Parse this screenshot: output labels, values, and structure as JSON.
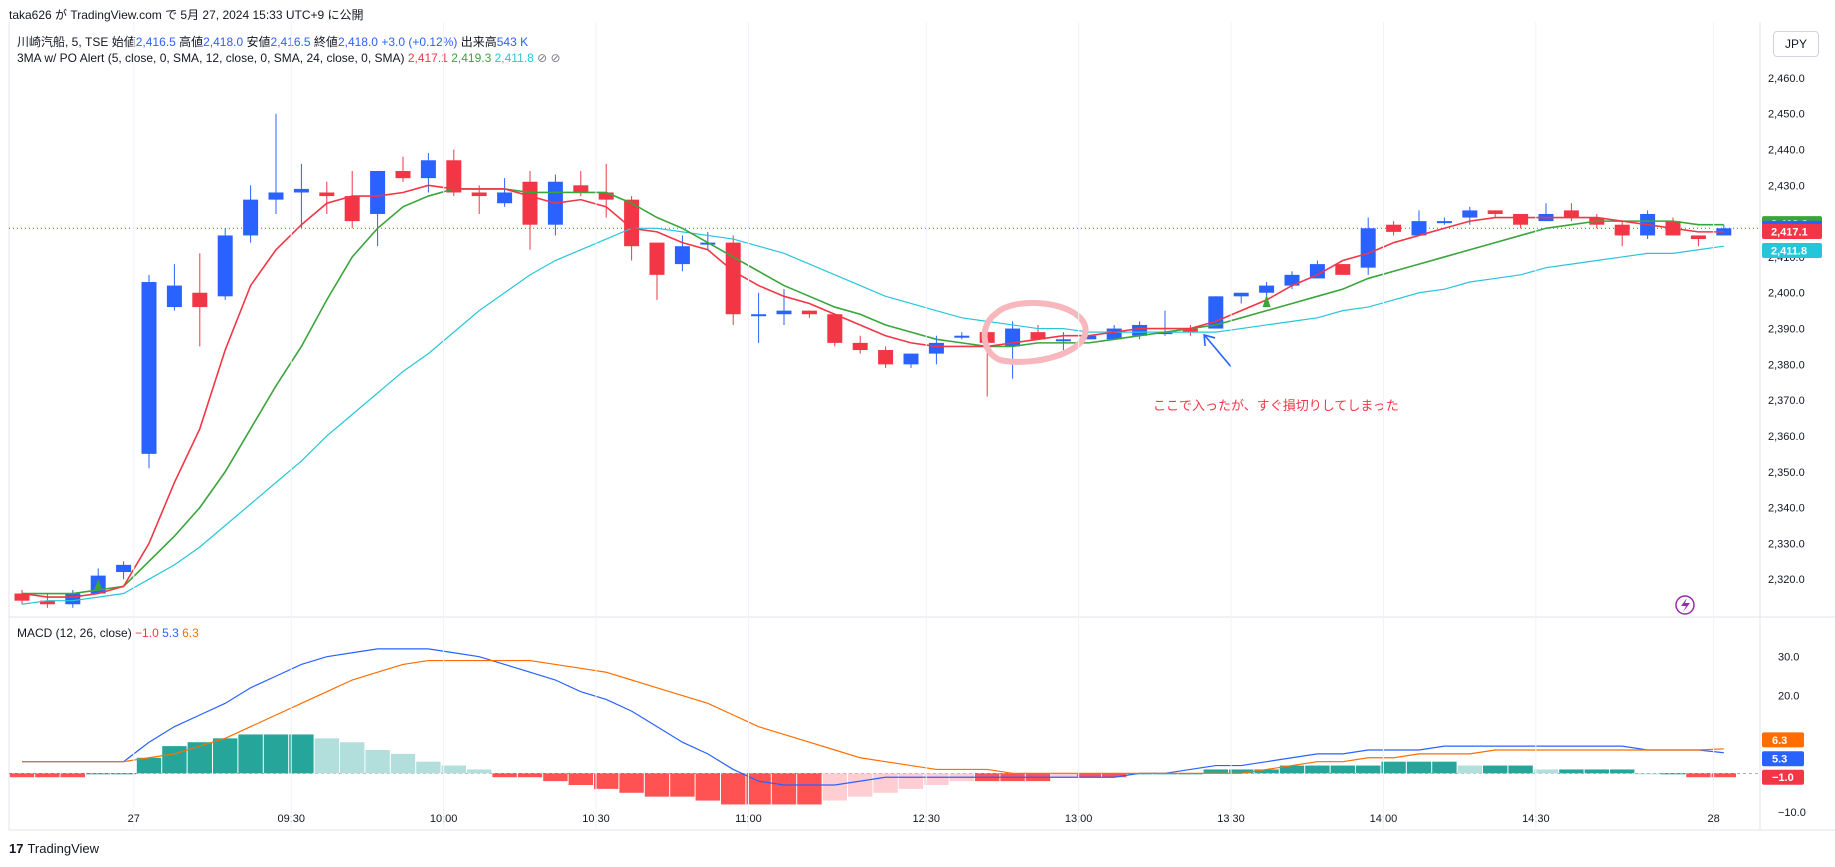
{
  "caption": "taka626 が TradingView.com で 5月 27, 2024 15:33 UTC+9 に公開",
  "symbol_legend": {
    "name": "川崎汽船, 5, TSE",
    "open_label": "始値",
    "open": "2,416.5",
    "high_label": "高値",
    "high": "2,418.0",
    "low_label": "安値",
    "low": "2,416.5",
    "close_label": "終値",
    "close": "2,418.0",
    "change": "+3.0 (+0.12%)",
    "volume_label": "出来高",
    "volume": "543 K"
  },
  "ma_legend": {
    "name": "3MA w/ PO Alert (5, close, 0, SMA, 12, close, 0, SMA, 24, close, 0, SMA)",
    "v1": "2,417.1",
    "v2": "2,419.3",
    "v3": "2,411.8"
  },
  "macd_legend": {
    "name": "MACD (12, 26, close)",
    "v1": "−1.0",
    "v2": "5.3",
    "v3": "6.3"
  },
  "currency_button": "JPY",
  "footer": "TradingView",
  "annotation": "ここで入ったが、すぐ損切りしてしまった",
  "colors": {
    "up": "#2962ff",
    "down": "#f23645",
    "ma5": "#f23645",
    "ma12": "#3ba53b",
    "ma24": "#26c6da",
    "macd": "#2962ff",
    "signal": "#ff6d00",
    "hist_up_strong": "#26a69a",
    "hist_up_weak": "#b2dfdb",
    "hist_down_strong": "#ff5252",
    "hist_down_weak": "#ffcdd2"
  },
  "chart_data": [
    {
      "type": "candlestick",
      "ylim": [
        2310,
        2465
      ],
      "y_ticks": [
        2320,
        2330,
        2340,
        2350,
        2360,
        2370,
        2380,
        2390,
        2400,
        2410,
        2420,
        2430,
        2440,
        2450,
        2460
      ],
      "y_tick_labels": [
        "2,320.0",
        "2,330.0",
        "2,340.0",
        "2,350.0",
        "2,360.0",
        "2,370.0",
        "2,380.0",
        "2,390.0",
        "2,400.0",
        "2,410.0",
        "2,420.0",
        "2,430.0",
        "2,440.0",
        "2,450.0",
        "2,460.0"
      ],
      "x_labels": [
        {
          "i": 4.4,
          "text": "27"
        },
        {
          "i": 10.6,
          "text": "09:30"
        },
        {
          "i": 16.6,
          "text": "10:00"
        },
        {
          "i": 22.6,
          "text": "10:30"
        },
        {
          "i": 28.6,
          "text": "11:00"
        },
        {
          "i": 35.6,
          "text": "12:30"
        },
        {
          "i": 41.6,
          "text": "13:00"
        },
        {
          "i": 47.6,
          "text": "13:30"
        },
        {
          "i": 53.6,
          "text": "14:00"
        },
        {
          "i": 59.6,
          "text": "14:30"
        },
        {
          "i": 66.6,
          "text": "28"
        }
      ],
      "candles": [
        [
          2316,
          2317,
          2313,
          2314
        ],
        [
          2314,
          2316,
          2312,
          2313
        ],
        [
          2313,
          2317,
          2312,
          2316
        ],
        [
          2316,
          2323,
          2316,
          2321
        ],
        [
          2322,
          2325,
          2320,
          2324
        ],
        [
          2355,
          2405,
          2351,
          2403
        ],
        [
          2396,
          2408,
          2395,
          2402
        ],
        [
          2400,
          2411,
          2385,
          2396
        ],
        [
          2399,
          2418,
          2398,
          2416
        ],
        [
          2416,
          2430,
          2414,
          2426
        ],
        [
          2426,
          2450,
          2422,
          2428
        ],
        [
          2428,
          2436,
          2418,
          2429
        ],
        [
          2428,
          2431,
          2422,
          2427
        ],
        [
          2427,
          2434,
          2418,
          2420
        ],
        [
          2422,
          2434,
          2413,
          2434
        ],
        [
          2434,
          2438,
          2431,
          2432
        ],
        [
          2432,
          2439,
          2428,
          2437
        ],
        [
          2437,
          2440,
          2427,
          2428
        ],
        [
          2428,
          2430,
          2422,
          2427
        ],
        [
          2425,
          2432,
          2424,
          2428
        ],
        [
          2431,
          2434,
          2412,
          2419
        ],
        [
          2419,
          2433,
          2416,
          2431
        ],
        [
          2430,
          2434,
          2427,
          2428
        ],
        [
          2428,
          2436,
          2421,
          2426
        ],
        [
          2426,
          2427,
          2409,
          2413
        ],
        [
          2414,
          2414,
          2398,
          2405
        ],
        [
          2408,
          2416,
          2406,
          2413
        ],
        [
          2414,
          2417,
          2412,
          2414
        ],
        [
          2414,
          2416,
          2391,
          2394
        ],
        [
          2394,
          2400,
          2386,
          2394
        ],
        [
          2394,
          2401,
          2391,
          2395
        ],
        [
          2395,
          2395,
          2393,
          2394
        ],
        [
          2394,
          2394,
          2385,
          2386
        ],
        [
          2386,
          2388,
          2383,
          2384
        ],
        [
          2384,
          2385,
          2379,
          2380
        ],
        [
          2380,
          2383,
          2379,
          2383
        ],
        [
          2383,
          2388,
          2380,
          2386
        ],
        [
          2388,
          2389,
          2387,
          2388
        ],
        [
          2389,
          2390,
          2371,
          2386
        ],
        [
          2385,
          2392,
          2376,
          2390
        ],
        [
          2389,
          2391,
          2387,
          2387
        ],
        [
          2387,
          2389,
          2384,
          2387
        ],
        [
          2387,
          2388,
          2387,
          2388
        ],
        [
          2387,
          2391,
          2387,
          2390
        ],
        [
          2388,
          2392,
          2387,
          2391
        ],
        [
          2389,
          2395,
          2388,
          2389
        ],
        [
          2390,
          2391,
          2388,
          2389
        ],
        [
          2390,
          2399,
          2390,
          2399
        ],
        [
          2399,
          2400,
          2397,
          2400
        ],
        [
          2400,
          2403,
          2399,
          2402
        ],
        [
          2402,
          2406,
          2401,
          2405
        ],
        [
          2404,
          2409,
          2404,
          2408
        ],
        [
          2408,
          2408,
          2405,
          2405
        ],
        [
          2407,
          2421,
          2405,
          2418
        ],
        [
          2419,
          2420,
          2416,
          2417
        ],
        [
          2416,
          2423,
          2417,
          2420
        ],
        [
          2420,
          2421,
          2419,
          2420
        ],
        [
          2421,
          2424,
          2419,
          2423
        ],
        [
          2423,
          2423,
          2421,
          2422
        ],
        [
          2422,
          2422,
          2418,
          2419
        ],
        [
          2420,
          2425,
          2420,
          2422
        ],
        [
          2423,
          2425,
          2420,
          2421
        ],
        [
          2421,
          2422,
          2418,
          2419
        ],
        [
          2419,
          2420,
          2413,
          2416
        ],
        [
          2416,
          2423,
          2415,
          2422
        ],
        [
          2420,
          2421,
          2416,
          2416
        ],
        [
          2416,
          2416,
          2413,
          2415
        ],
        [
          2416,
          2419,
          2416,
          2418
        ]
      ],
      "ma5": [
        2316,
        2315,
        2315,
        2316,
        2318,
        2330,
        2347,
        2362,
        2384,
        2402,
        2412,
        2419,
        2425,
        2427,
        2427,
        2428,
        2430,
        2429,
        2429,
        2429,
        2427,
        2425,
        2426,
        2424,
        2418,
        2417,
        2414,
        2412,
        2406,
        2402,
        2399,
        2397,
        2394,
        2391,
        2388,
        2386,
        2385,
        2385,
        2385,
        2386,
        2387,
        2388,
        2388,
        2389,
        2390,
        2390,
        2390,
        2392,
        2395,
        2398,
        2402,
        2405,
        2409,
        2411,
        2414,
        2416,
        2418,
        2420,
        2421,
        2421,
        2421,
        2421,
        2421,
        2420,
        2419,
        2418,
        2417,
        2417
      ],
      "ma12": [
        2316,
        2316,
        2316,
        2317,
        2318,
        2325,
        2332,
        2340,
        2350,
        2362,
        2374,
        2385,
        2398,
        2410,
        2418,
        2424,
        2427,
        2429,
        2429,
        2429,
        2428,
        2428,
        2428,
        2428,
        2425,
        2421,
        2418,
        2414,
        2410,
        2406,
        2402,
        2399,
        2396,
        2394,
        2391,
        2389,
        2387,
        2386,
        2385,
        2385,
        2386,
        2386,
        2386,
        2387,
        2388,
        2389,
        2390,
        2391,
        2393,
        2395,
        2397,
        2399,
        2401,
        2404,
        2406,
        2408,
        2410,
        2412,
        2414,
        2416,
        2418,
        2419,
        2420,
        2420,
        2420,
        2420,
        2419,
        2419
      ],
      "ma24": [
        2313,
        2314,
        2314,
        2315,
        2316,
        2320,
        2324,
        2329,
        2335,
        2341,
        2347,
        2353,
        2360,
        2366,
        2372,
        2378,
        2383,
        2389,
        2395,
        2400,
        2405,
        2409,
        2412,
        2415,
        2418,
        2418,
        2417,
        2416,
        2415,
        2413,
        2411,
        2408,
        2405,
        2402,
        2399,
        2397,
        2395,
        2393,
        2392,
        2391,
        2390,
        2390,
        2389,
        2389,
        2389,
        2389,
        2389,
        2389,
        2390,
        2391,
        2392,
        2393,
        2395,
        2396,
        2398,
        2400,
        2401,
        2403,
        2404,
        2405,
        2407,
        2408,
        2409,
        2410,
        2411,
        2411,
        2412,
        2413
      ],
      "price_labels": [
        {
          "value": 2419.3,
          "text": "2,419.3",
          "color": "#3ba53b"
        },
        {
          "value": 2418.0,
          "text": "2,418.0",
          "color": "#2962ff"
        },
        {
          "value": 2417.1,
          "text": "2,417.1",
          "color": "#f23645"
        },
        {
          "value": 2411.8,
          "text": "2,411.8",
          "color": "#26c6da"
        }
      ],
      "last_price": 2418.0
    },
    {
      "type": "macd",
      "ylim": [
        -12,
        33
      ],
      "y_ticks": [
        30,
        20,
        0,
        -10
      ],
      "y_tick_labels": [
        "30.0",
        "20.0",
        "",
        "−10.0"
      ],
      "macd": [
        3,
        3,
        3,
        3,
        3,
        8,
        12,
        15,
        18,
        22,
        25,
        28,
        30,
        31,
        32,
        32,
        32,
        31,
        30,
        28,
        26,
        24,
        21,
        19,
        16,
        12,
        8,
        5,
        1,
        -2,
        -3,
        -3,
        -3,
        -2,
        -1,
        -1,
        -1,
        -1,
        -1,
        -1,
        -1,
        -1,
        -1,
        -1,
        0,
        0,
        1,
        2,
        2,
        3,
        4,
        5,
        5,
        6,
        6,
        6,
        7,
        7,
        7,
        7,
        7,
        7,
        7,
        7,
        6,
        6,
        6,
        5.3
      ],
      "signal": [
        3,
        3,
        3,
        3,
        3,
        4,
        5,
        7,
        9,
        12,
        15,
        18,
        21,
        24,
        26,
        28,
        29,
        29,
        29,
        29,
        29,
        28,
        27,
        26,
        24,
        22,
        20,
        18,
        15,
        12,
        10,
        8,
        6,
        4,
        3,
        2,
        1,
        1,
        1,
        0,
        0,
        0,
        0,
        0,
        0,
        0,
        0,
        0,
        0,
        1,
        2,
        3,
        3,
        4,
        4,
        5,
        5,
        5,
        6,
        6,
        6,
        6,
        6,
        6,
        6,
        6,
        6,
        6.3
      ],
      "hist": [
        -1,
        -1,
        -1,
        0,
        0,
        4,
        7,
        8,
        9,
        10,
        10,
        10,
        9,
        8,
        6,
        5,
        3,
        2,
        1,
        -1,
        -1,
        -2,
        -3,
        -4,
        -5,
        -6,
        -6,
        -7,
        -8,
        -8,
        -8,
        -8,
        -7,
        -6,
        -5,
        -4,
        -3,
        -2,
        -2,
        -2,
        -2,
        -1,
        -1,
        -1,
        0,
        0,
        0,
        1,
        1,
        1,
        2,
        2,
        2,
        2,
        3,
        3,
        3,
        2,
        2,
        2,
        1,
        1,
        1,
        1,
        0,
        0,
        -1,
        -1
      ]
    }
  ]
}
